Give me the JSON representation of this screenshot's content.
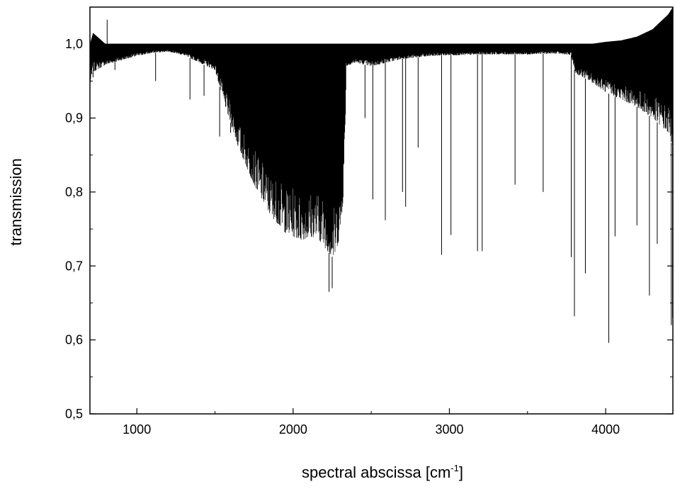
{
  "chart_data": {
    "type": "line",
    "title": "",
    "xlabel": "spectral abscissa [cm",
    "xlabel_sup": "-1",
    "xlabel_tail": "]",
    "ylabel": "transmission",
    "xlim": [
      700,
      4430
    ],
    "ylim": [
      0.5,
      1.05
    ],
    "x_ticks": [
      1000,
      2000,
      3000,
      4000
    ],
    "x_tick_labels": [
      "1000",
      "2000",
      "3000",
      "4000"
    ],
    "y_ticks": [
      0.5,
      0.6,
      0.7,
      0.8,
      0.9,
      1.0
    ],
    "y_tick_labels": [
      "0,5",
      "0,6",
      "0,7",
      "0,8",
      "0,9",
      "1,0"
    ],
    "grid": false,
    "line_color": "#000000",
    "series": [
      {
        "envelope_x": [
          700,
          720,
          800,
          900,
          1000,
          1100,
          1200,
          1300,
          1400,
          1500,
          1560,
          1650,
          1750,
          1850,
          1950,
          2050,
          2150,
          2220,
          2260,
          2300,
          2320,
          2335,
          2340,
          2400,
          2500,
          2600,
          2700,
          2800,
          2900,
          3000,
          3100,
          3200,
          3300,
          3400,
          3500,
          3600,
          3700,
          3780,
          3800,
          3810,
          3900,
          4000,
          4100,
          4200,
          4300,
          4400,
          4430
        ],
        "envelope_low": [
          0.945,
          0.962,
          0.972,
          0.978,
          0.984,
          0.988,
          0.99,
          0.985,
          0.975,
          0.965,
          0.92,
          0.86,
          0.81,
          0.77,
          0.745,
          0.735,
          0.74,
          0.72,
          0.71,
          0.74,
          0.79,
          0.9,
          0.97,
          0.975,
          0.97,
          0.975,
          0.98,
          0.982,
          0.984,
          0.985,
          0.985,
          0.986,
          0.986,
          0.986,
          0.986,
          0.987,
          0.987,
          0.985,
          0.965,
          0.96,
          0.95,
          0.935,
          0.925,
          0.915,
          0.9,
          0.88,
          0.86
        ],
        "envelope_high": [
          1.0,
          1.015,
          1.0,
          1.0,
          1.0,
          1.0,
          1.0,
          1.0,
          1.0,
          1.0,
          1.0,
          1.0,
          1.0,
          1.0,
          1.0,
          1.0,
          1.0,
          1.0,
          1.0,
          1.0,
          1.0,
          1.0,
          1.0,
          1.0,
          1.0,
          1.0,
          1.0,
          1.0,
          1.0,
          1.0,
          1.0,
          1.0,
          1.0,
          1.0,
          1.0,
          1.0,
          1.0,
          1.0,
          1.0,
          1.0,
          1.0,
          1.003,
          1.005,
          1.01,
          1.02,
          1.04,
          1.05
        ],
        "spike_x": [
          720,
          810,
          860,
          1120,
          1340,
          1430,
          1530,
          1600,
          2230,
          2250,
          2460,
          2510,
          2590,
          2700,
          2720,
          2800,
          2950,
          3010,
          3180,
          3210,
          3420,
          3600,
          3780,
          3800,
          3870,
          4020,
          4060,
          4200,
          4280,
          4330,
          4420,
          4428
        ],
        "spike_y": [
          0.955,
          1.033,
          0.965,
          0.95,
          0.925,
          0.93,
          0.875,
          0.88,
          0.665,
          0.67,
          0.9,
          0.79,
          0.762,
          0.8,
          0.78,
          0.86,
          0.715,
          0.742,
          0.72,
          0.72,
          0.81,
          0.8,
          0.712,
          0.632,
          0.69,
          0.596,
          0.74,
          0.755,
          0.66,
          0.73,
          0.62,
          0.63
        ]
      }
    ]
  }
}
